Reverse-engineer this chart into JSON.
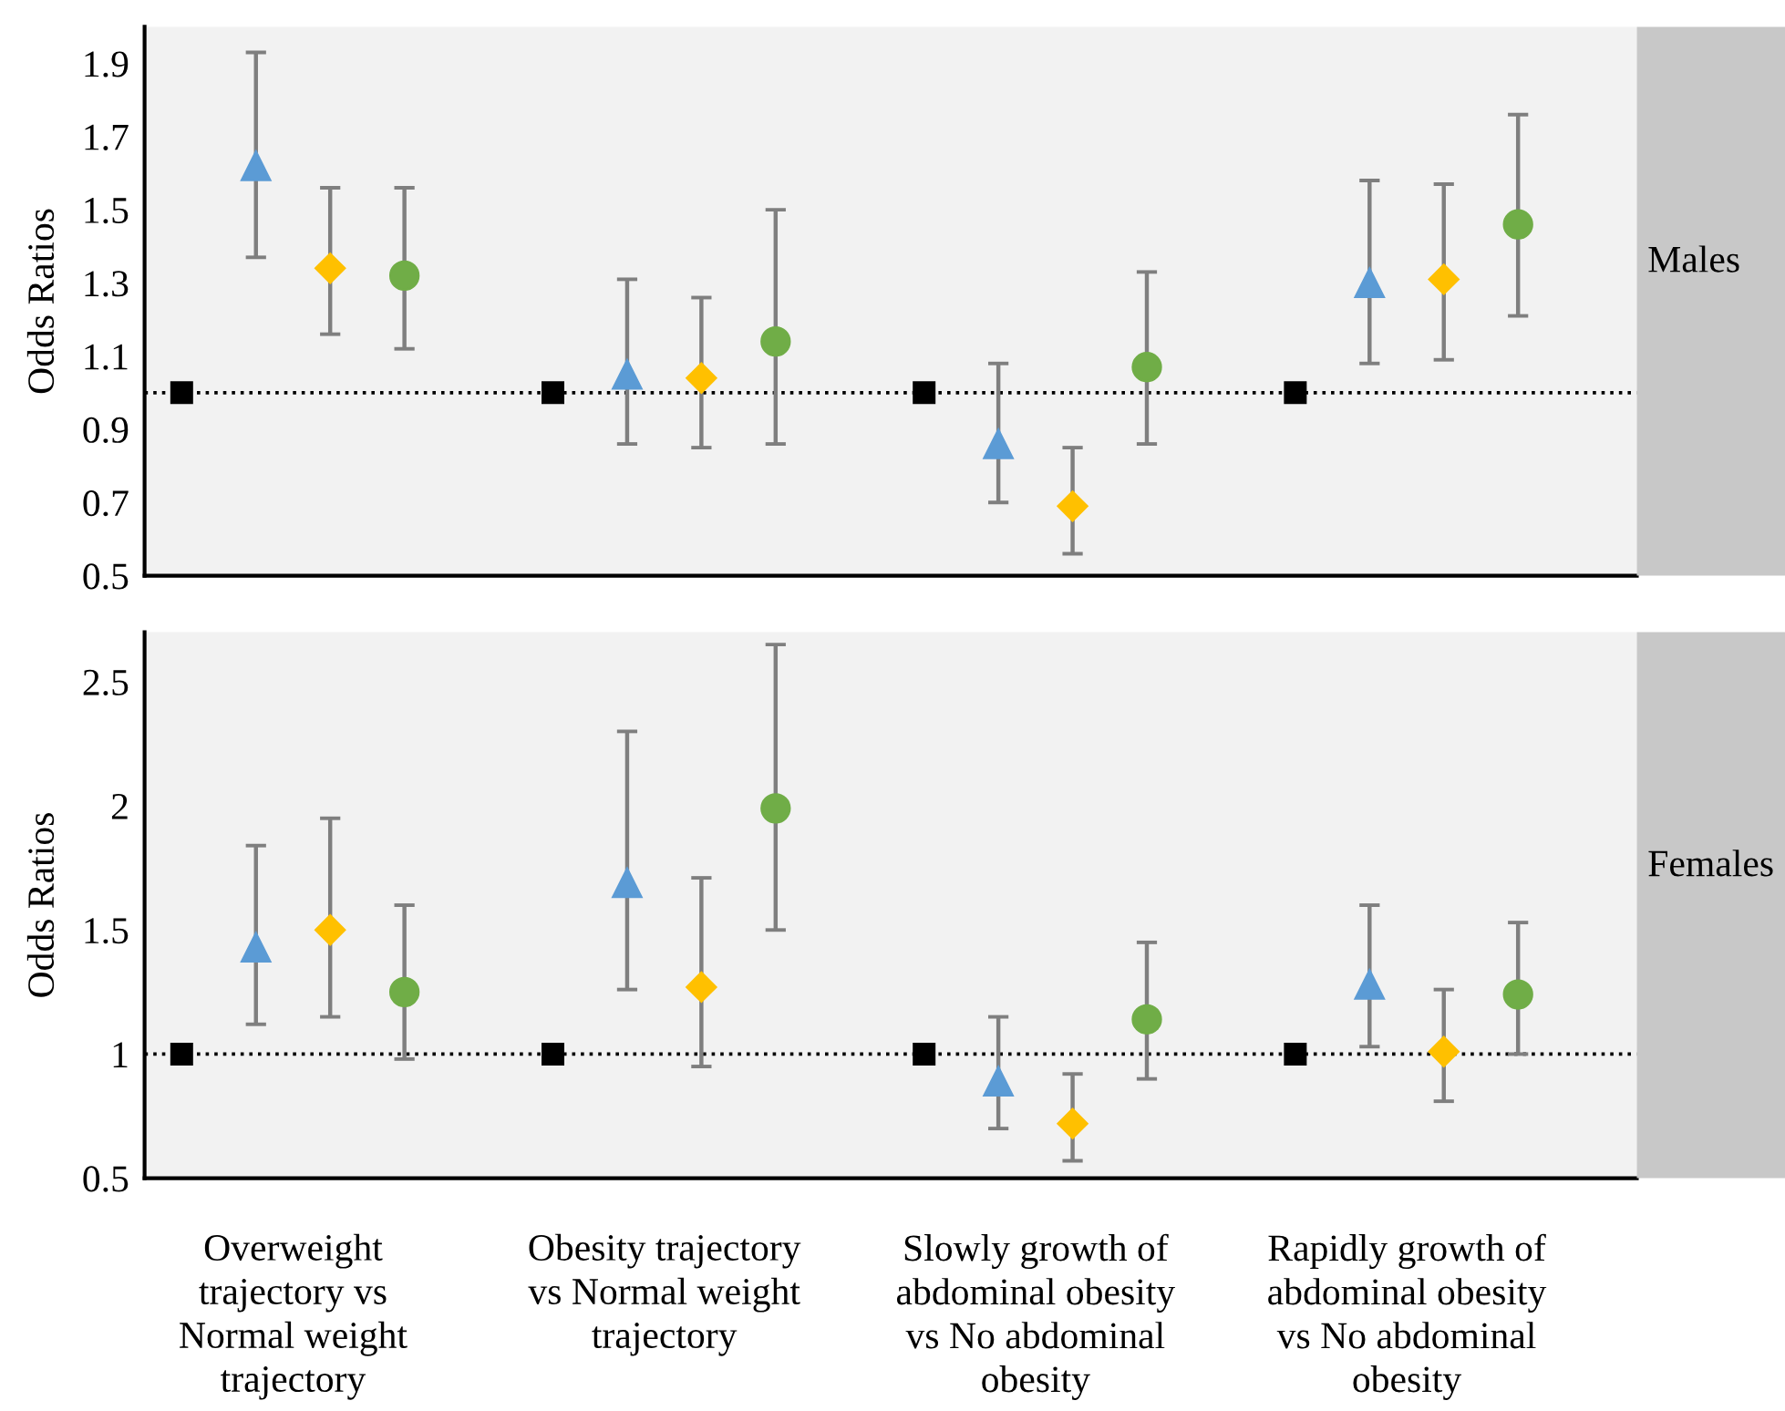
{
  "chart_data": [
    {
      "type": "scatter",
      "ylabel": "Odds Ratios",
      "annotations": [
        "Males"
      ],
      "categories": [
        null,
        null,
        null,
        null
      ],
      "ylim": [
        0.5,
        2.0
      ],
      "yticks": [
        0.5,
        0.7,
        0.9,
        1.1,
        1.3,
        1.5,
        1.7,
        1.9
      ],
      "tick_labels": "y",
      "grid": false,
      "legend": false,
      "ref_lines": [
        {
          "axis": "y",
          "value": 1,
          "color": "#000000",
          "line_style": "dotted"
        }
      ],
      "series": [
        {
          "color": "#000000",
          "marker": "square",
          "values": [
            1,
            1,
            1,
            1
          ]
        },
        {
          "color": "#5b9bd5",
          "marker": "triangle",
          "values": [
            1.62,
            1.05,
            0.86,
            1.3
          ],
          "errors": [
            [
              1.37,
              1.93
            ],
            [
              0.86,
              1.31
            ],
            [
              0.7,
              1.08
            ],
            [
              1.08,
              1.58
            ]
          ]
        },
        {
          "color": "#ffc000",
          "marker": "diamond",
          "values": [
            1.34,
            1.04,
            0.69,
            1.31
          ],
          "errors": [
            [
              1.16,
              1.56
            ],
            [
              0.85,
              1.26
            ],
            [
              0.56,
              0.85
            ],
            [
              1.09,
              1.57
            ]
          ]
        },
        {
          "color": "#70ad47",
          "marker": "circle",
          "values": [
            1.32,
            1.14,
            1.07,
            1.46
          ],
          "errors": [
            [
              1.12,
              1.56
            ],
            [
              0.86,
              1.5
            ],
            [
              0.86,
              1.33
            ],
            [
              1.21,
              1.76
            ]
          ]
        }
      ]
    },
    {
      "type": "scatter",
      "ylabel": "Odds Ratios",
      "annotations": [
        "Females"
      ],
      "categories": [
        "Overweight\ntrajectory vs\nNormal weight\ntrajectory",
        "Obesity trajectory\nvs Normal weight\ntrajectory",
        "Slowly growth of\nabdominal obesity\nvs No abdominal\nobesity",
        "Rapidly growth of\nabdominal obesity\nvs No abdominal\nobesity"
      ],
      "ylim": [
        0.5,
        2.7
      ],
      "yticks": [
        0.5,
        1,
        1.5,
        2,
        2.5
      ],
      "grid": false,
      "legend": false,
      "ref_lines": [
        {
          "axis": "y",
          "value": 1,
          "color": "#000000",
          "line_style": "dotted"
        }
      ],
      "series": [
        {
          "color": "#000000",
          "marker": "square",
          "values": [
            1,
            1,
            1,
            1
          ]
        },
        {
          "color": "#5b9bd5",
          "marker": "triangle",
          "values": [
            1.43,
            1.69,
            0.89,
            1.28
          ],
          "errors": [
            [
              1.12,
              1.84
            ],
            [
              1.26,
              2.3
            ],
            [
              0.7,
              1.15
            ],
            [
              1.03,
              1.6
            ]
          ]
        },
        {
          "color": "#ffc000",
          "marker": "diamond",
          "values": [
            1.5,
            1.27,
            0.72,
            1.01
          ],
          "errors": [
            [
              1.15,
              1.95
            ],
            [
              0.95,
              1.71
            ],
            [
              0.57,
              0.92
            ],
            [
              0.81,
              1.26
            ]
          ]
        },
        {
          "color": "#70ad47",
          "marker": "circle",
          "values": [
            1.25,
            1.99,
            1.14,
            1.24
          ],
          "errors": [
            [
              0.98,
              1.6
            ],
            [
              1.5,
              2.65
            ],
            [
              0.9,
              1.45
            ],
            [
              1.0,
              1.53
            ]
          ]
        }
      ]
    }
  ]
}
